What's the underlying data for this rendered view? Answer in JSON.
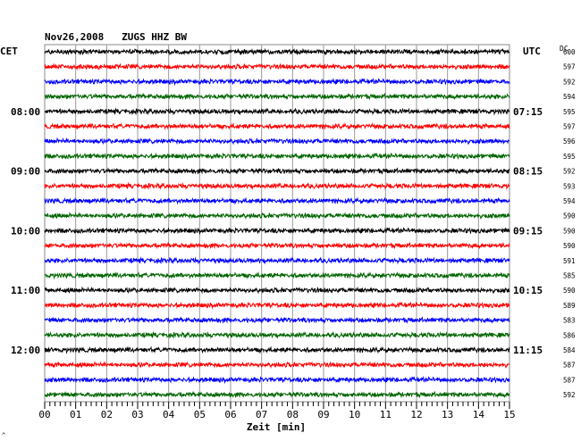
{
  "chart_data": {
    "type": "line",
    "title": "Nov26,2008   ZUGS HHZ BW",
    "left_zone_label": "CET",
    "right_zone_label": "UTC",
    "dc_header": "DC",
    "xlabel": "Zeit [min]",
    "xlim": [
      0,
      15
    ],
    "x_tick_labels": [
      "00",
      "01",
      "02",
      "03",
      "04",
      "05",
      "06",
      "07",
      "08",
      "09",
      "10",
      "11",
      "12",
      "13",
      "14",
      "15"
    ],
    "trace_colors": [
      "#000000",
      "#ff0000",
      "#0000ff",
      "#006400"
    ],
    "hour_labels": [
      {
        "trace": 4,
        "cet": "08:00",
        "utc": "07:15"
      },
      {
        "trace": 8,
        "cet": "09:00",
        "utc": "08:15"
      },
      {
        "trace": 12,
        "cet": "10:00",
        "utc": "09:15"
      },
      {
        "trace": 16,
        "cet": "11:00",
        "utc": "10:15"
      },
      {
        "trace": 20,
        "cet": "12:00",
        "utc": "11:15"
      }
    ],
    "dc_values": [
      "600",
      "597",
      "592",
      "594",
      "595",
      "597",
      "596",
      "595",
      "592",
      "593",
      "594",
      "590",
      "590",
      "590",
      "591",
      "585",
      "590",
      "589",
      "583",
      "586",
      "584",
      "587",
      "587",
      "592"
    ],
    "footer_mark": "^"
  }
}
